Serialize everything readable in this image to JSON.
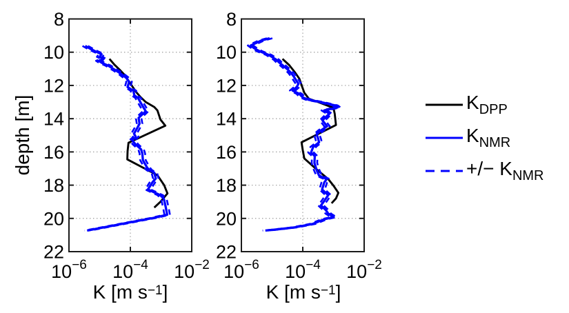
{
  "figure": {
    "background": "#ffffff"
  },
  "colors": {
    "kdpp": "#000000",
    "knmr": "#0000ff",
    "grid": "#999999",
    "axis": "#1a1a1a"
  },
  "legend": {
    "entries": [
      {
        "id": "kdpp",
        "pre": "K",
        "sub": "DPP",
        "color": "#000000",
        "style": "solid"
      },
      {
        "id": "knmr",
        "pre": "K",
        "sub": "NMR",
        "color": "#0000ff",
        "style": "solid"
      },
      {
        "id": "knmr-band",
        "pre": "+/− K",
        "sub": "NMR",
        "color": "#0000ff",
        "style": "dashed"
      }
    ]
  },
  "chart_data": [
    {
      "type": "line",
      "panel": "left",
      "title": "",
      "ylabel": "depth [m]",
      "xlabel": {
        "pre": "K [m s",
        "sup": "−1",
        "post": "]"
      },
      "xscale": "log10",
      "xlim": [
        -6,
        -2
      ],
      "ylim": [
        8,
        22
      ],
      "y_axis_reversed": true,
      "xticks": [
        {
          "v": -6,
          "base": "10",
          "exp": "−6"
        },
        {
          "v": -4,
          "base": "10",
          "exp": "−4"
        },
        {
          "v": -2,
          "base": "10",
          "exp": "−2"
        }
      ],
      "yticks": [
        8,
        10,
        12,
        14,
        16,
        18,
        20,
        22
      ],
      "grid": {
        "x": [
          -4
        ],
        "y": [
          10,
          12,
          14,
          16,
          18,
          20
        ]
      },
      "series": [
        {
          "name": "K_DPP",
          "color": "#000000",
          "style": "solid",
          "width": 2.9,
          "points_depth_log10K": [
            [
              10.4,
              -4.68
            ],
            [
              10.75,
              -4.52
            ],
            [
              11.05,
              -4.35
            ],
            [
              11.4,
              -4.17
            ],
            [
              11.75,
              -4.05
            ],
            [
              12.05,
              -3.94
            ],
            [
              12.4,
              -3.81
            ],
            [
              12.7,
              -3.67
            ],
            [
              13.0,
              -3.5
            ],
            [
              13.3,
              -3.22
            ],
            [
              13.5,
              -3.12
            ],
            [
              14.05,
              -3.02
            ],
            [
              14.42,
              -2.86
            ],
            [
              15.45,
              -4.06
            ],
            [
              15.95,
              -4.09
            ],
            [
              16.45,
              -4.1
            ],
            [
              17.4,
              -3.12
            ],
            [
              18.0,
              -2.9
            ],
            [
              18.5,
              -2.79
            ],
            [
              19.0,
              -3.02
            ],
            [
              19.35,
              -3.22
            ]
          ]
        },
        {
          "name": "K_NMR",
          "color": "#0000ff",
          "style": "solid",
          "width": 3.3,
          "points_depth_log10K": [
            [
              9.62,
              -5.47
            ],
            [
              9.8,
              -5.3
            ],
            [
              9.95,
              -5.14
            ],
            [
              10.12,
              -4.94
            ],
            [
              10.28,
              -5.0
            ],
            [
              10.4,
              -4.87
            ],
            [
              10.52,
              -5.03
            ],
            [
              10.65,
              -4.92
            ],
            [
              10.8,
              -4.73
            ],
            [
              10.95,
              -4.6
            ],
            [
              11.1,
              -4.47
            ],
            [
              11.33,
              -4.28
            ],
            [
              11.55,
              -4.13
            ],
            [
              11.78,
              -4.04
            ],
            [
              12.1,
              -4.09
            ],
            [
              12.32,
              -3.9
            ],
            [
              12.6,
              -3.87
            ],
            [
              12.75,
              -3.75
            ],
            [
              13.05,
              -3.66
            ],
            [
              13.3,
              -3.58
            ],
            [
              13.55,
              -3.5
            ],
            [
              13.95,
              -3.73
            ],
            [
              14.3,
              -3.7
            ],
            [
              14.55,
              -3.77
            ],
            [
              14.9,
              -3.88
            ],
            [
              15.1,
              -3.82
            ],
            [
              15.3,
              -3.94
            ],
            [
              15.55,
              -3.83
            ],
            [
              15.85,
              -3.65
            ],
            [
              16.1,
              -3.61
            ],
            [
              16.5,
              -3.59
            ],
            [
              16.95,
              -3.45
            ],
            [
              17.1,
              -3.38
            ],
            [
              17.25,
              -3.22
            ],
            [
              17.6,
              -3.17
            ],
            [
              17.8,
              -3.27
            ],
            [
              18.26,
              -3.43
            ],
            [
              18.6,
              -3.03
            ],
            [
              18.81,
              -2.91
            ],
            [
              19.3,
              -2.85
            ],
            [
              19.78,
              -2.8
            ],
            [
              19.97,
              -3.25
            ],
            [
              20.13,
              -3.7
            ],
            [
              20.29,
              -4.16
            ],
            [
              20.45,
              -4.61
            ],
            [
              20.61,
              -5.07
            ],
            [
              20.73,
              -5.41
            ]
          ]
        },
        {
          "name": "+/- K_NMR",
          "color": "#0000ff",
          "style": "dashed",
          "width": 2.6,
          "band_of": "K_NMR",
          "offset_decades": 0.09
        }
      ]
    },
    {
      "type": "line",
      "panel": "right",
      "title": "",
      "ylabel": "",
      "xlabel": {
        "pre": "K [m s",
        "sup": "−1",
        "post": "]"
      },
      "xscale": "log10",
      "xlim": [
        -6,
        -2
      ],
      "ylim": [
        8,
        22
      ],
      "y_axis_reversed": true,
      "xticks": [
        {
          "v": -6,
          "base": "10",
          "exp": "−6"
        },
        {
          "v": -4,
          "base": "10",
          "exp": "−4"
        },
        {
          "v": -2,
          "base": "10",
          "exp": "−2"
        }
      ],
      "yticks": [
        8,
        10,
        12,
        14,
        16,
        18,
        20,
        22
      ],
      "grid": {
        "x": [
          -4
        ],
        "y": [
          10,
          12,
          14,
          16,
          18,
          20
        ]
      },
      "series": [
        {
          "name": "K_DPP",
          "color": "#000000",
          "style": "solid",
          "width": 2.9,
          "points_depth_log10K": [
            [
              10.4,
              -4.66
            ],
            [
              10.78,
              -4.44
            ],
            [
              11.2,
              -4.26
            ],
            [
              11.6,
              -4.11
            ],
            [
              12.03,
              -4.03
            ],
            [
              12.44,
              -3.95
            ],
            [
              12.8,
              -3.8
            ],
            [
              13.0,
              -3.5
            ],
            [
              13.35,
              -3.0
            ],
            [
              13.7,
              -2.96
            ],
            [
              14.38,
              -2.92
            ],
            [
              15.42,
              -4.04
            ],
            [
              15.9,
              -4.0
            ],
            [
              16.39,
              -3.95
            ],
            [
              17.0,
              -3.58
            ],
            [
              17.63,
              -3.17
            ],
            [
              18.05,
              -2.99
            ],
            [
              18.46,
              -2.84
            ],
            [
              18.8,
              -2.92
            ],
            [
              19.09,
              -3.06
            ]
          ]
        },
        {
          "name": "K_NMR",
          "color": "#0000ff",
          "style": "solid",
          "width": 3.3,
          "points_depth_log10K": [
            [
              9.16,
              -5.08
            ],
            [
              9.3,
              -5.35
            ],
            [
              9.6,
              -5.7
            ],
            [
              9.8,
              -5.55
            ],
            [
              9.95,
              -5.4
            ],
            [
              10.16,
              -5.11
            ],
            [
              10.45,
              -4.86
            ],
            [
              10.6,
              -4.78
            ],
            [
              10.78,
              -4.66
            ],
            [
              11.06,
              -4.48
            ],
            [
              11.27,
              -4.37
            ],
            [
              11.47,
              -4.29
            ],
            [
              11.68,
              -4.22
            ],
            [
              11.9,
              -4.14
            ],
            [
              12.1,
              -4.2
            ],
            [
              12.31,
              -4.33
            ],
            [
              12.5,
              -4.12
            ],
            [
              12.72,
              -4.0
            ],
            [
              12.86,
              -3.81
            ],
            [
              13.0,
              -3.42
            ],
            [
              13.2,
              -2.95
            ],
            [
              13.32,
              -2.86
            ],
            [
              13.5,
              -3.3
            ],
            [
              13.7,
              -3.13
            ],
            [
              13.9,
              -3.25
            ],
            [
              14.1,
              -3.36
            ],
            [
              14.45,
              -3.21
            ],
            [
              14.7,
              -3.4
            ],
            [
              14.94,
              -3.55
            ],
            [
              15.2,
              -3.5
            ],
            [
              15.42,
              -3.47
            ],
            [
              15.7,
              -3.66
            ],
            [
              16.04,
              -3.73
            ],
            [
              16.25,
              -3.61
            ],
            [
              16.66,
              -3.62
            ],
            [
              17.08,
              -3.55
            ],
            [
              17.42,
              -3.47
            ],
            [
              17.63,
              -3.22
            ],
            [
              17.84,
              -3.3
            ],
            [
              18.26,
              -3.37
            ],
            [
              18.6,
              -3.17
            ],
            [
              18.95,
              -3.3
            ],
            [
              19.22,
              -3.41
            ],
            [
              19.5,
              -3.25
            ],
            [
              19.71,
              -3.17
            ],
            [
              19.92,
              -2.99
            ],
            [
              20.05,
              -3.3
            ],
            [
              20.33,
              -3.67
            ],
            [
              20.54,
              -4.26
            ],
            [
              20.68,
              -4.93
            ],
            [
              20.73,
              -5.22
            ]
          ]
        },
        {
          "name": "+/- K_NMR",
          "color": "#0000ff",
          "style": "dashed",
          "width": 2.6,
          "band_of": "K_NMR",
          "offset_decades": 0.09
        }
      ]
    }
  ]
}
